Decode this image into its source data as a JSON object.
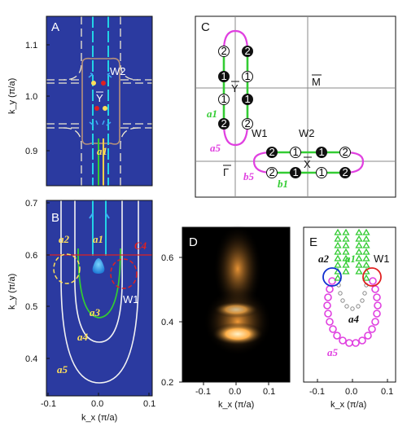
{
  "panels": {
    "A": {
      "label": "A",
      "y_ticks": [
        "1.1",
        "1.0",
        "0.9"
      ],
      "y_axis_label": "k_y (π/a)",
      "annotations": {
        "w2": "W2",
        "ybar": "Y",
        "a1": "a1"
      }
    },
    "B": {
      "label": "B",
      "y_ticks": [
        "0.7",
        "0.6",
        "0.5",
        "0.4"
      ],
      "x_ticks": [
        "-0.1",
        "0.0",
        "0.1"
      ],
      "y_axis_label": "k_y (π/a)",
      "x_axis_label": "k_x (π/a)",
      "annotations": {
        "a1": "a1",
        "a2": "a2",
        "a3": "a3",
        "a4": "a4",
        "a5": "a5",
        "c4": "C4",
        "w1": "W1"
      }
    },
    "C": {
      "label": "C",
      "points": {
        "ybar": "Y",
        "mbar": "M",
        "gamma": "Γ",
        "xbar": "X"
      },
      "annotations": {
        "a1": "a1",
        "a5": "a5",
        "b1": "b1",
        "b5": "b5",
        "w1": "W1",
        "w2": "W2"
      },
      "markers": [
        "1",
        "2"
      ]
    },
    "D": {
      "label": "D",
      "y_ticks": [
        "0.6",
        "0.4",
        "0.2"
      ],
      "x_ticks": [
        "-0.1",
        "0.0",
        "0.1"
      ],
      "x_axis_label": "k_x (π/a)"
    },
    "E": {
      "label": "E",
      "x_ticks": [
        "-0.1",
        "0.0",
        "0.1"
      ],
      "x_axis_label": "k_x (π/a)",
      "annotations": {
        "a1": "a1",
        "a2": "a2",
        "a4": "a4",
        "a5": "a5",
        "w1": "W1"
      }
    }
  },
  "colors": {
    "navy": "#2b3aa0",
    "green": "#33cc33",
    "magenta": "#e040e0",
    "cyan": "#22d3e6",
    "yellow": "#ffe05a",
    "red": "#e02020",
    "blue_circle": "#1030d0",
    "orange": "#ff9a2a"
  }
}
